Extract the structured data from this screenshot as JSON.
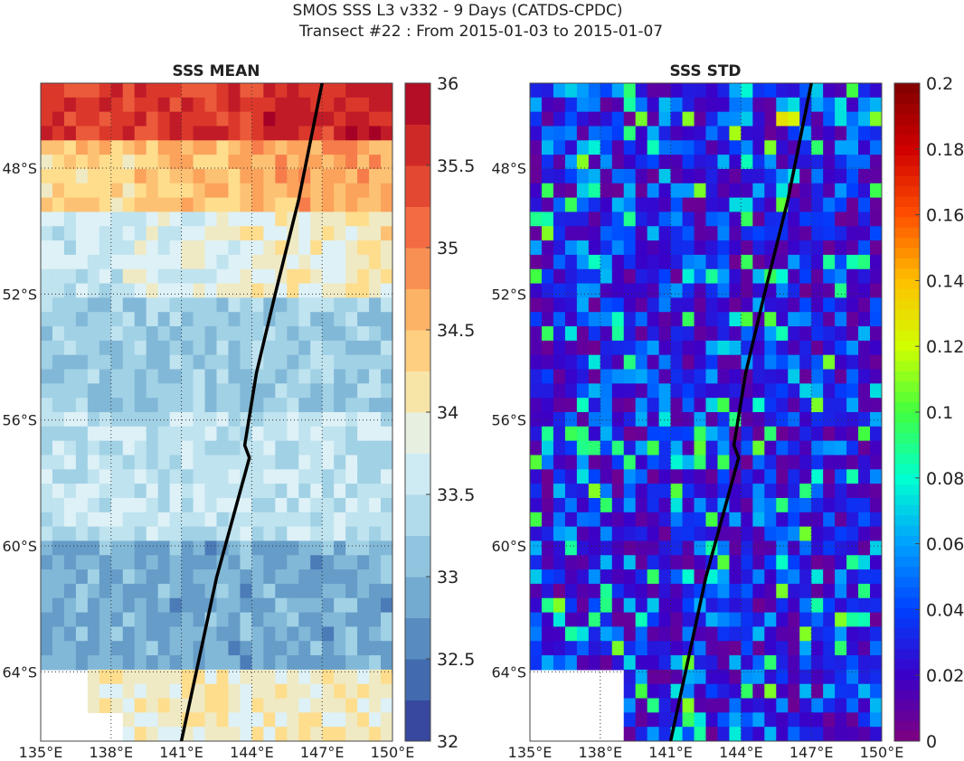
{
  "figure": {
    "title_line1": "SMOS SSS L3 v332 - 9 Days (CATDS-CPDC)",
    "title_line2": "Transect #22 : From 2015-01-03 to 2015-01-07"
  },
  "chart_data": [
    {
      "type": "heatmap",
      "title": "SSS MEAN",
      "x_ticks": [
        "135°E",
        "138°E",
        "141°E",
        "144°E",
        "147°E",
        "150°E"
      ],
      "y_ticks": [
        "48°S",
        "52°S",
        "56°S",
        "60°S",
        "64°S"
      ],
      "xlim": [
        135,
        150
      ],
      "ylim": [
        -66.2,
        -45.3
      ],
      "lat_bands": [
        {
          "lat_from": -45.3,
          "lat_to": -47.2,
          "value": 35.4
        },
        {
          "lat_from": -47.2,
          "lat_to": -49.5,
          "value": 34.5
        },
        {
          "lat_from": -49.5,
          "lat_to": -52.0,
          "value": 33.8
        },
        {
          "lat_from": -52.0,
          "lat_to": -55.8,
          "value": 33.2
        },
        {
          "lat_from": -55.8,
          "lat_to": -60.0,
          "value": 33.5
        },
        {
          "lat_from": -60.0,
          "lat_to": -64.0,
          "value": 32.9
        },
        {
          "lat_from": -64.0,
          "lat_to": -66.2,
          "value": 34.0
        }
      ],
      "colorbar": {
        "min": 32,
        "max": 36,
        "ticks": [
          "36",
          "35.5",
          "35",
          "34.5",
          "34",
          "33.5",
          "33",
          "32.5",
          "32"
        ],
        "colors": [
          "#313695",
          "#4575b4",
          "#74add1",
          "#abd9e9",
          "#e0f3f8",
          "#fee090",
          "#fdae61",
          "#f46d43",
          "#d73027",
          "#a50026"
        ]
      },
      "grid": true,
      "transect": [
        [
          147.0,
          -45.3
        ],
        [
          146.0,
          -49.0
        ],
        [
          145.0,
          -52.0
        ],
        [
          144.2,
          -54.5
        ],
        [
          143.7,
          -56.8
        ],
        [
          143.9,
          -57.2
        ],
        [
          142.5,
          -61.0
        ],
        [
          141.0,
          -66.2
        ]
      ]
    },
    {
      "type": "heatmap",
      "title": "SSS STD",
      "x_ticks": [
        "135°E",
        "138°E",
        "141°E",
        "144°E",
        "147°E",
        "150°E"
      ],
      "y_ticks": [
        "48°S",
        "52°S",
        "56°S",
        "60°S",
        "64°S"
      ],
      "xlim": [
        135,
        150
      ],
      "ylim": [
        -66.2,
        -45.3
      ],
      "colorbar": {
        "min": 0,
        "max": 0.2,
        "ticks": [
          "0.2",
          "0.18",
          "0.16",
          "0.14",
          "0.12",
          "0.1",
          "0.08",
          "0.06",
          "0.04",
          "0.02",
          "0"
        ],
        "colors": [
          "#7f007f",
          "#3b00c8",
          "#0040ff",
          "#00a0ff",
          "#00ffd0",
          "#40ff40",
          "#d0ff00",
          "#ffc000",
          "#ff5000",
          "#d00000",
          "#800000"
        ]
      },
      "grid": true,
      "transect": [
        [
          147.0,
          -45.3
        ],
        [
          146.0,
          -49.0
        ],
        [
          145.0,
          -52.0
        ],
        [
          144.2,
          -54.5
        ],
        [
          143.7,
          -56.8
        ],
        [
          143.9,
          -57.2
        ],
        [
          142.5,
          -61.0
        ],
        [
          141.0,
          -66.2
        ]
      ]
    }
  ]
}
